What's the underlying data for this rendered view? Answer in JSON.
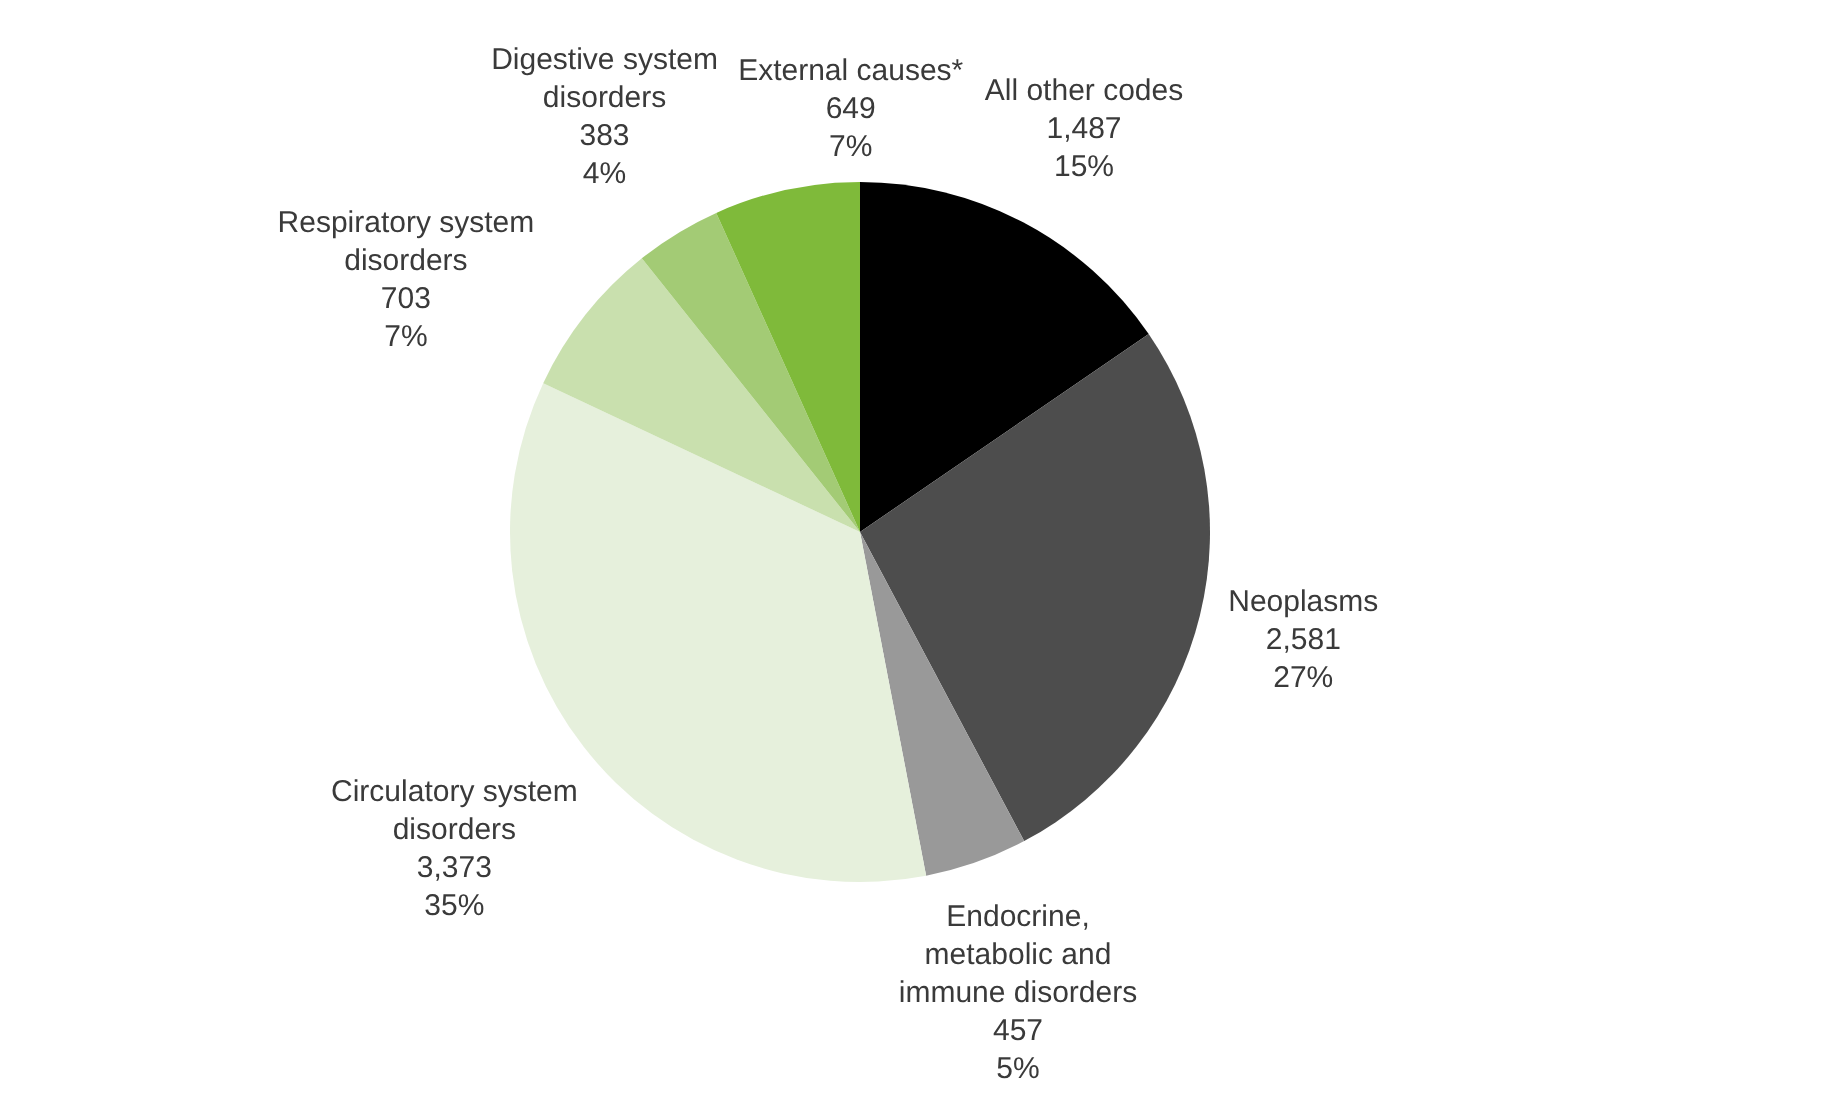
{
  "chart_data": {
    "type": "pie",
    "categories": [
      "All other codes",
      "Neoplasms",
      "Endocrine, metabolic and immune disorders",
      "Circulatory system disorders",
      "Respiratory system disorders",
      "Digestive system disorders",
      "External causes*"
    ],
    "values": [
      1487,
      2581,
      457,
      3373,
      703,
      383,
      649
    ],
    "colors": [
      "#000000",
      "#4d4d4d",
      "#999999",
      "#e6f0dc",
      "#c9e0ae",
      "#a3cb75",
      "#7fba3a"
    ],
    "value_labels": [
      "1,487\n15%",
      "2,581\n27%",
      "457\n5%",
      "3,373\n35%",
      "703\n7%",
      "383\n4%",
      "649\n7%"
    ]
  }
}
